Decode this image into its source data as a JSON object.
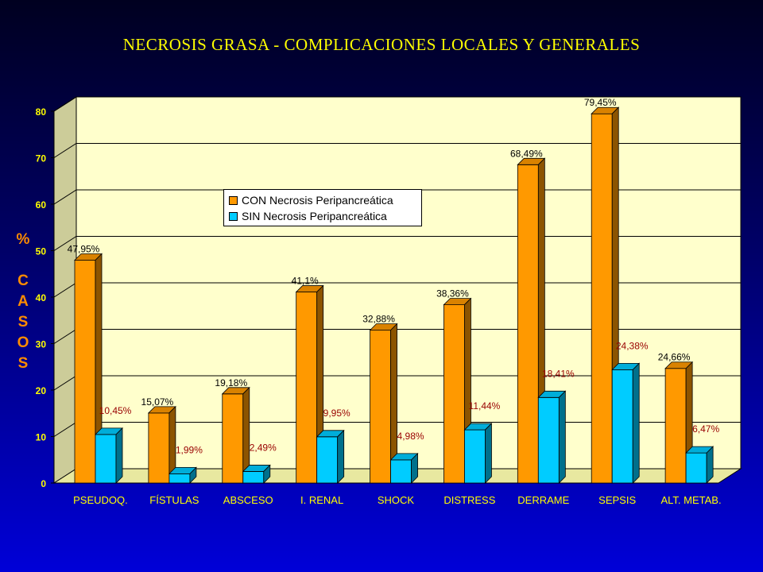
{
  "chart_data": {
    "type": "bar",
    "title": "NECROSIS GRASA - COMPLICACIONES LOCALES Y GENERALES",
    "ylabel_symbol": "%",
    "ylabel_word": "CASOS",
    "categories": [
      "PSEUDOQ.",
      "FÍSTULAS",
      "ABSCESO",
      "I. RENAL",
      "SHOCK",
      "DISTRESS",
      "DERRAME",
      "SEPSIS",
      "ALT. METAB."
    ],
    "series": [
      {
        "name": "CON Necrosis Peripancreática",
        "color": "#ff9900",
        "label_color": "#000000",
        "values": [
          47.95,
          15.07,
          19.18,
          41.1,
          32.88,
          38.36,
          68.49,
          79.45,
          24.66
        ],
        "labels": [
          "47,95%",
          "15,07%",
          "19,18%",
          "41,1%",
          "32,88%",
          "38,36%",
          "68,49%",
          "79,45%",
          "24,66%"
        ]
      },
      {
        "name": "SIN Necrosis Peripancreática",
        "color": "#00ccff",
        "label_color": "#990000",
        "values": [
          10.45,
          1.99,
          2.49,
          9.95,
          4.98,
          11.44,
          18.41,
          24.38,
          6.47
        ],
        "labels": [
          "10,45%",
          "1,99%",
          "2,49%",
          "9,95%",
          "4,98%",
          "11,44%",
          "18,41%",
          "24,38%",
          "6,47%"
        ]
      }
    ],
    "ylim": [
      0,
      80
    ],
    "yticks": [
      "0",
      "10",
      "20",
      "30",
      "40",
      "50",
      "60",
      "70",
      "80"
    ],
    "grid": true,
    "legend_position": "upper-left-center",
    "plot_background": "#ffffcc"
  }
}
